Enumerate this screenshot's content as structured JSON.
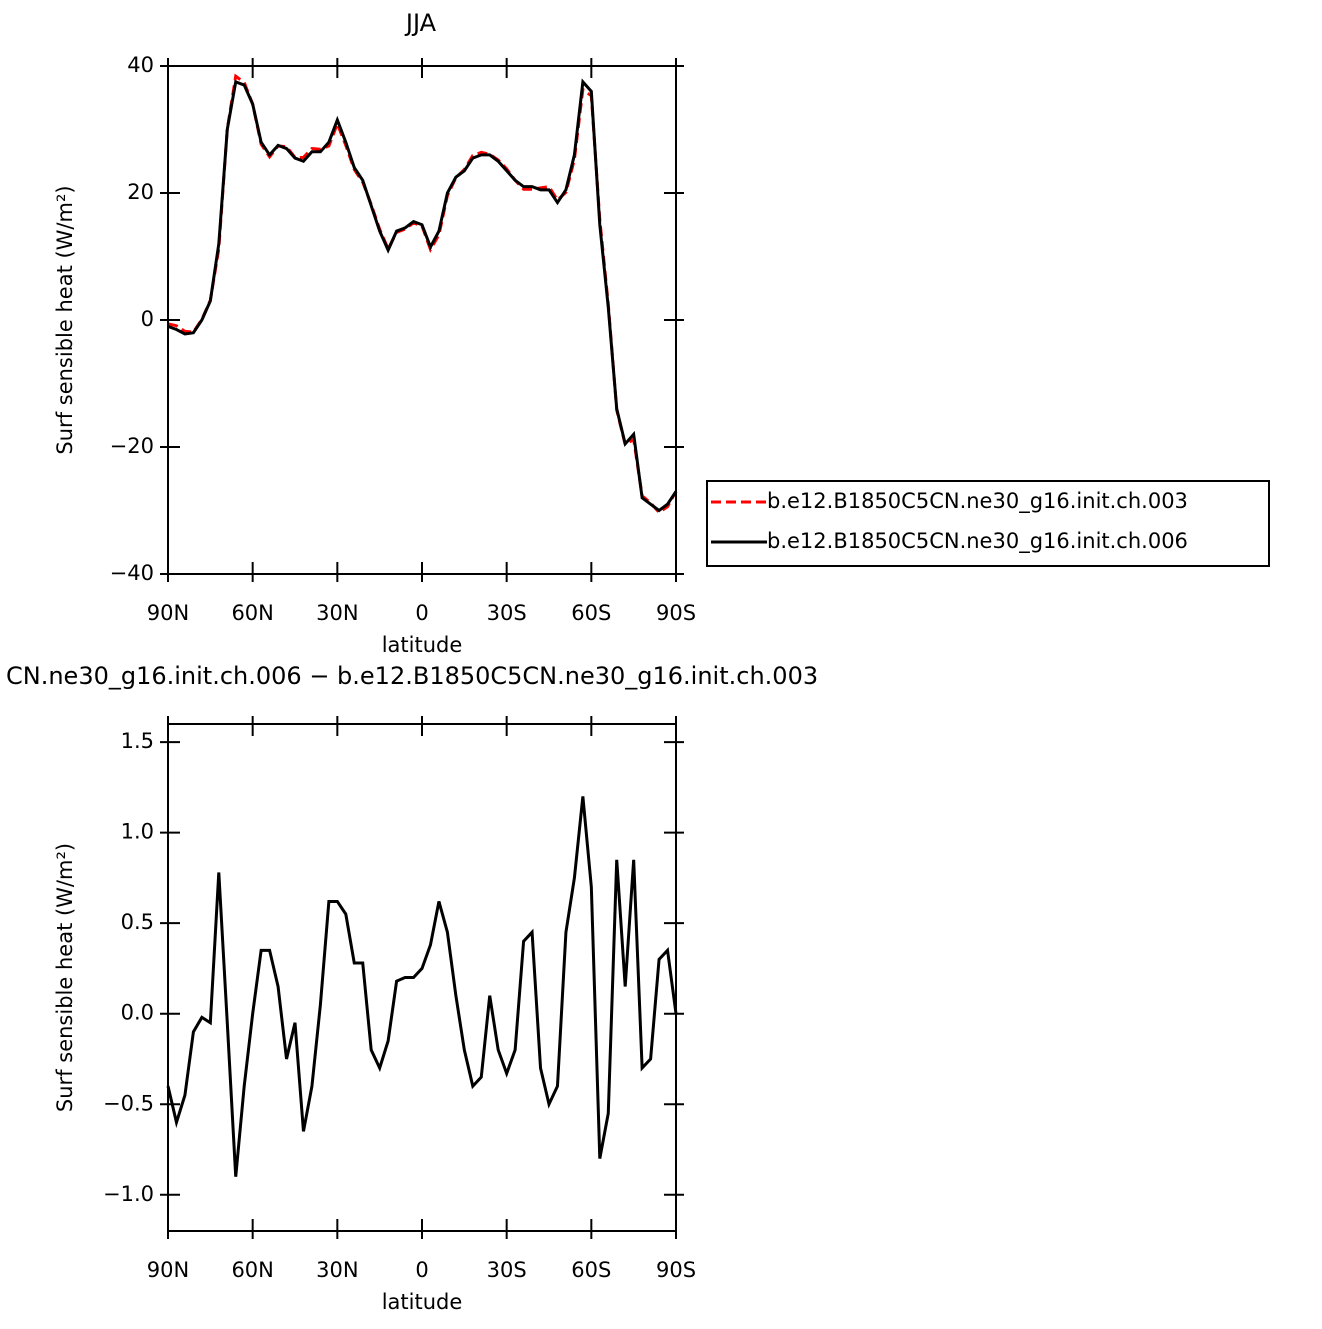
{
  "chart_data": [
    {
      "type": "line",
      "title": "JJA",
      "x_label": "latitude",
      "y_label": "Surf sensible heat (W/m²)",
      "x": [
        90,
        87,
        84,
        81,
        78,
        75,
        72,
        69,
        66,
        63,
        60,
        57,
        54,
        51,
        48,
        45,
        42,
        39,
        36,
        33,
        30,
        27,
        24,
        21,
        18,
        15,
        12,
        9,
        6,
        3,
        0,
        -3,
        -6,
        -9,
        -12,
        -15,
        -18,
        -21,
        -24,
        -27,
        -30,
        -33,
        -36,
        -39,
        -42,
        -45,
        -48,
        -51,
        -54,
        -57,
        -60,
        -63,
        -66,
        -69,
        -72,
        -75,
        -78,
        -81,
        -84,
        -87,
        -90
      ],
      "series": [
        {
          "name": "b.e12.B1850C5CN.ne30_g16.init.ch.003",
          "color": "#ff0000",
          "dash": true,
          "values": [
            -0.6,
            -0.9,
            -1.8,
            -1.9,
            0.1,
            3.1,
            11.2,
            30.1,
            38.4,
            37.4,
            34.0,
            27.7,
            25.7,
            27.4,
            27.3,
            25.6,
            25.6,
            27.0,
            26.9,
            27.4,
            30.9,
            27.5,
            23.7,
            21.7,
            18.2,
            14.3,
            11.2,
            13.8,
            14.3,
            15.3,
            14.8,
            11.1,
            13.4,
            19.6,
            22.4,
            23.7,
            25.9,
            26.4,
            26.1,
            25.2,
            23.8,
            22.0,
            20.6,
            20.6,
            20.8,
            21.0,
            18.9,
            20.1,
            25.3,
            36.3,
            35.3,
            15.8,
            2.5,
            -14.2,
            -19.6,
            -18.8,
            -27.7,
            -28.8,
            -30.3,
            -29.4,
            -27.0
          ]
        },
        {
          "name": "b.e12.B1850C5CN.ne30_g16.init.ch.006",
          "color": "#000000",
          "dash": false,
          "values": [
            -1,
            -1.5,
            -2.2,
            -2,
            0,
            3,
            12,
            30,
            37.5,
            37,
            34,
            28,
            26,
            27.5,
            27,
            25.5,
            25,
            26.5,
            26.5,
            28,
            31.5,
            28,
            24,
            22,
            18,
            14,
            11,
            14,
            14.5,
            15.5,
            15,
            11.5,
            14,
            20,
            22.5,
            23.5,
            25.5,
            26,
            26,
            25,
            23.5,
            22,
            21,
            21,
            20.5,
            20.5,
            18.5,
            20.5,
            26,
            37.5,
            36,
            15,
            2,
            -14,
            -19.5,
            -18,
            -28,
            -29,
            -30,
            -29,
            -27
          ]
        }
      ],
      "xlim": [
        90,
        -90
      ],
      "xticks": [
        {
          "value": 90,
          "label": "90N"
        },
        {
          "value": 60,
          "label": "60N"
        },
        {
          "value": 30,
          "label": "30N"
        },
        0,
        {
          "value": -30,
          "label": "30S"
        },
        {
          "value": -60,
          "label": "60S"
        },
        {
          "value": -90,
          "label": "90S"
        }
      ],
      "ylim": [
        -40,
        40
      ],
      "yticks": [
        {
          "value": -40,
          "label": "−40"
        },
        {
          "value": -20,
          "label": "−20"
        },
        0,
        20,
        40
      ],
      "legend": "right"
    },
    {
      "type": "line",
      "title": "CN.ne30_g16.init.ch.006 − b.e12.B1850C5CN.ne30_g16.init.ch.003",
      "x_label": "latitude",
      "y_label": "Surf sensible heat (W/m²)",
      "x": [
        90,
        87,
        84,
        81,
        78,
        75,
        72,
        69,
        66,
        63,
        60,
        57,
        54,
        51,
        48,
        45,
        42,
        39,
        36,
        33,
        30,
        27,
        24,
        21,
        18,
        15,
        12,
        9,
        6,
        3,
        0,
        -3,
        -6,
        -9,
        -12,
        -15,
        -18,
        -21,
        -24,
        -27,
        -30,
        -33,
        -36,
        -39,
        -42,
        -45,
        -48,
        -51,
        -54,
        -57,
        -60,
        -63,
        -66,
        -69,
        -72,
        -75,
        -78,
        -81,
        -84,
        -87,
        -90
      ],
      "series": [
        {
          "color": "#000000",
          "values": [
            -0.4,
            -0.6,
            -0.45,
            -0.1,
            -0.02,
            -0.05,
            0.78,
            -0.05,
            -0.9,
            -0.4,
            0.0,
            0.35,
            0.35,
            0.15,
            -0.25,
            -0.05,
            -0.65,
            -0.4,
            0.05,
            0.62,
            0.62,
            0.55,
            0.28,
            0.28,
            -0.2,
            -0.3,
            -0.15,
            0.18,
            0.2,
            0.2,
            0.25,
            0.38,
            0.62,
            0.45,
            0.1,
            -0.2,
            -0.4,
            -0.35,
            0.1,
            -0.2,
            -0.33,
            -0.2,
            0.4,
            0.45,
            -0.3,
            -0.5,
            -0.4,
            0.45,
            0.75,
            1.2,
            0.7,
            -0.8,
            -0.55,
            0.85,
            0.15,
            0.85,
            -0.3,
            -0.25,
            0.3,
            0.35,
            0.0
          ]
        }
      ],
      "xlim": [
        90,
        -90
      ],
      "xticks": [
        {
          "value": 90,
          "label": "90N"
        },
        {
          "value": 60,
          "label": "60N"
        },
        {
          "value": 30,
          "label": "30N"
        },
        0,
        {
          "value": -30,
          "label": "30S"
        },
        {
          "value": -60,
          "label": "60S"
        },
        {
          "value": -90,
          "label": "90S"
        }
      ],
      "ylim": [
        -1.2,
        1.6
      ],
      "yticks": [
        {
          "value": -1,
          "label": "−1.0"
        },
        {
          "value": -0.5,
          "label": "−0.5"
        },
        {
          "value": 0,
          "label": "0.0"
        },
        {
          "value": 0.5,
          "label": "0.5"
        },
        {
          "value": 1,
          "label": "1.0"
        },
        1.5
      ]
    }
  ]
}
